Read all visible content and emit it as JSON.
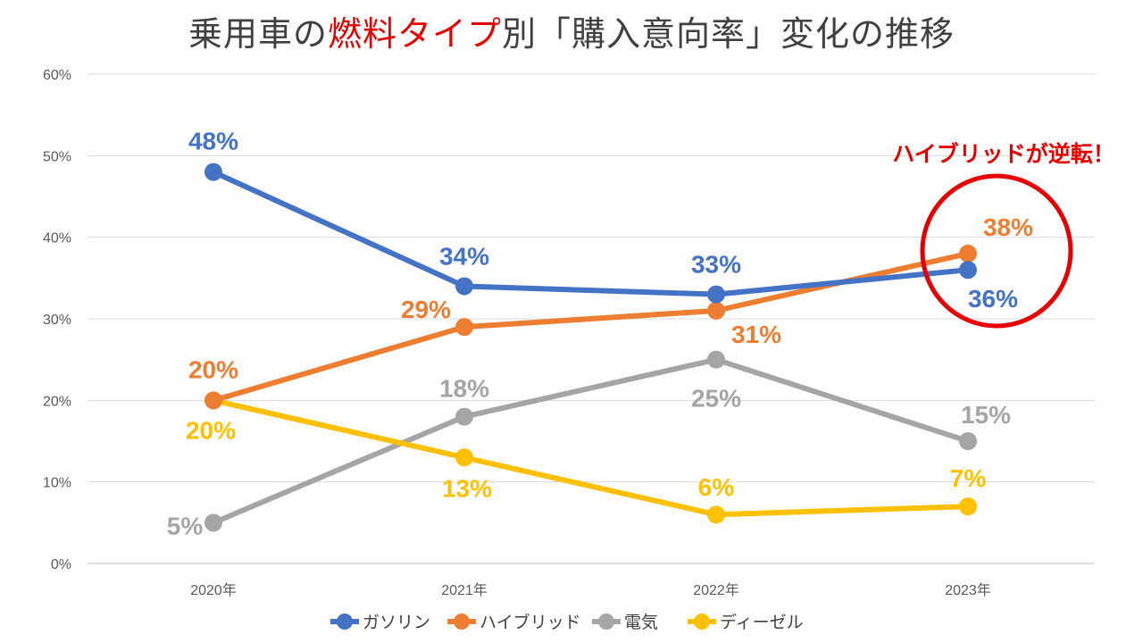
{
  "title": {
    "part1": "乗用車の",
    "highlight": "燃料タイプ",
    "part2": "別「購入意向率」変化の推移"
  },
  "annotation": "ハイブリッドが逆転！",
  "chart_data": {
    "type": "line",
    "categories": [
      "2020年",
      "2021年",
      "2022年",
      "2023年"
    ],
    "y_ticks": [
      "0%",
      "10%",
      "20%",
      "30%",
      "40%",
      "50%",
      "60%"
    ],
    "ylim": [
      0,
      60
    ],
    "grid": true,
    "legend_position": "bottom",
    "series": [
      {
        "name": "ガソリン",
        "color": "#4472c4",
        "values": [
          48,
          34,
          33,
          36
        ],
        "labels": [
          "48%",
          "34%",
          "33%",
          "36%"
        ]
      },
      {
        "name": "ハイブリッド",
        "color": "#ed7d31",
        "values": [
          20,
          29,
          31,
          38
        ],
        "labels": [
          "20%",
          "29%",
          "31%",
          "38%"
        ]
      },
      {
        "name": "電気",
        "color": "#a5a5a5",
        "values": [
          5,
          18,
          25,
          15
        ],
        "labels": [
          "5%",
          "18%",
          "25%",
          "15%"
        ]
      },
      {
        "name": "ディーゼル",
        "color": "#ffc000",
        "values": [
          20,
          13,
          6,
          7
        ],
        "labels": [
          "20%",
          "13%",
          "6%",
          "7%"
        ]
      }
    ]
  }
}
